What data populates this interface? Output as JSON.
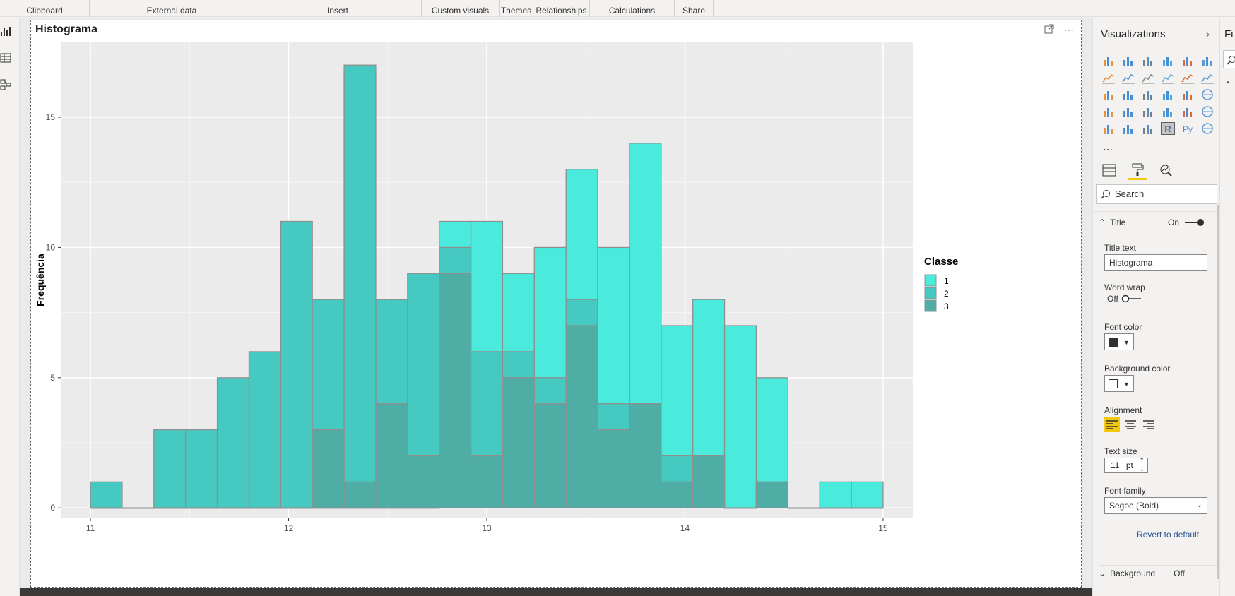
{
  "ribbon": {
    "groups": [
      "Clipboard",
      "External data",
      "Insert",
      "Custom visuals",
      "Themes",
      "Relationships",
      "Calculations",
      "Share"
    ]
  },
  "visual": {
    "title": "Histograma"
  },
  "chart_data": {
    "type": "bar",
    "title": "",
    "xlabel": "",
    "ylabel": "Frequência",
    "xlim": [
      10.85,
      15.15
    ],
    "ylim": [
      -0.4,
      17.9
    ],
    "x_ticks": [
      "11",
      "12",
      "13",
      "14",
      "15"
    ],
    "x_tick_values": [
      11,
      12,
      13,
      14,
      15
    ],
    "y_ticks": [
      "0",
      "5",
      "10",
      "15"
    ],
    "y_tick_values": [
      0,
      5,
      10,
      15
    ],
    "grid": true,
    "legend_title": "Classe",
    "legend_position": "right",
    "bin_edges": [
      11.0,
      11.16,
      11.32,
      11.48,
      11.64,
      11.8,
      11.96,
      12.12,
      12.28,
      12.44,
      12.6,
      12.76,
      12.92,
      13.08,
      13.24,
      13.4,
      13.56,
      13.72,
      13.88,
      14.04,
      14.2,
      14.36,
      14.52,
      14.68,
      14.84,
      15.0
    ],
    "series": [
      {
        "name": "1",
        "color": "#4aebdc",
        "values": [
          0,
          0,
          0,
          0,
          0,
          0,
          0,
          0,
          0,
          0,
          0,
          11,
          11,
          9,
          10,
          13,
          10,
          14,
          7,
          8,
          7,
          5,
          0,
          1,
          1
        ]
      },
      {
        "name": "2",
        "color": "#45c9c1",
        "values": [
          1,
          0,
          3,
          3,
          5,
          6,
          11,
          8,
          17,
          8,
          9,
          10,
          6,
          6,
          5,
          8,
          4,
          4,
          2,
          2,
          0,
          1,
          0,
          0,
          0
        ]
      },
      {
        "name": "3",
        "color": "#4eaea6",
        "values": [
          0,
          0,
          0,
          0,
          0,
          0,
          0,
          3,
          1,
          4,
          2,
          9,
          2,
          5,
          4,
          7,
          3,
          4,
          1,
          2,
          0,
          1,
          0,
          0,
          0
        ]
      }
    ]
  },
  "panel": {
    "title": "Visualizations",
    "search_placeholder": "Search",
    "section_title": "Title",
    "title_toggle": "On",
    "title_text_label": "Title text",
    "title_text_value": "Histograma",
    "word_wrap_label": "Word wrap",
    "word_wrap_toggle": "Off",
    "font_color_label": "Font color",
    "font_color": "#323130",
    "bg_color_label": "Background color",
    "bg_color": "#ffffff",
    "alignment_label": "Alignment",
    "text_size_label": "Text size",
    "text_size_value": "11",
    "text_size_unit": "pt",
    "font_family_label": "Font family",
    "font_family_value": "Segoe (Bold)",
    "revert_label": "Revert to default",
    "next_section": "Background",
    "next_section_toggle": "Off"
  },
  "panel2": {
    "title": "Fi"
  },
  "colors": {
    "accent": "#f2c811",
    "plot_bg": "#ebebeb",
    "grid": "#ffffff"
  }
}
